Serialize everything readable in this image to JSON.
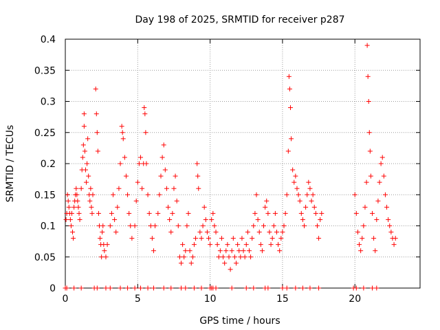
{
  "chart_data": {
    "type": "scatter",
    "title": "Day 198 of 2025, SRMTID for receiver p287",
    "xlabel": "GPS time / hours",
    "ylabel": "SRMTID / TECUs",
    "xlim": [
      0,
      24.5
    ],
    "ylim": [
      0,
      0.4
    ],
    "xticks": [
      0,
      5,
      10,
      15,
      20
    ],
    "xtick_labels": [
      "0",
      "5",
      "10",
      "15",
      "20"
    ],
    "yticks": [
      0,
      0.05,
      0.1,
      0.15,
      0.2,
      0.25,
      0.3,
      0.35,
      0.4
    ],
    "ytick_labels": [
      "0",
      "0.05",
      "0.1",
      "0.15",
      "0.2",
      "0.25",
      "0.3",
      "0.35",
      "0.4"
    ],
    "grid": true,
    "marker": "+",
    "color": "#ff0000",
    "zero_points_x": [
      0.0,
      0.1,
      0.6,
      1.1,
      2.0,
      2.2,
      2.8,
      3.1,
      3.8,
      4.3,
      4.8,
      5.2,
      5.7,
      6.1,
      6.8,
      7.3,
      8.0,
      8.3,
      8.9,
      9.4,
      10.0,
      10.1,
      10.2,
      10.4,
      11.5,
      12.5,
      13.0,
      13.8,
      14.0,
      15.0,
      15.3,
      15.9,
      16.4,
      16.9,
      17.5,
      19.9,
      20.1,
      20.6,
      21.2,
      21.5
    ],
    "series": [
      {
        "name": "SRMTID",
        "points": [
          [
            0.05,
            0.11
          ],
          [
            0.1,
            0.12
          ],
          [
            0.15,
            0.15
          ],
          [
            0.2,
            0.14
          ],
          [
            0.25,
            0.13
          ],
          [
            0.3,
            0.12
          ],
          [
            0.35,
            0.11
          ],
          [
            0.4,
            0.1
          ],
          [
            0.45,
            0.12
          ],
          [
            0.5,
            0.09
          ],
          [
            0.55,
            0.08
          ],
          [
            0.6,
            0.13
          ],
          [
            0.65,
            0.14
          ],
          [
            0.7,
            0.15
          ],
          [
            0.75,
            0.16
          ],
          [
            0.8,
            0.15
          ],
          [
            0.85,
            0.14
          ],
          [
            0.9,
            0.13
          ],
          [
            0.95,
            0.12
          ],
          [
            1.0,
            0.11
          ],
          [
            1.1,
            0.16
          ],
          [
            1.15,
            0.19
          ],
          [
            1.2,
            0.21
          ],
          [
            1.25,
            0.23
          ],
          [
            1.3,
            0.26
          ],
          [
            1.3,
            0.28
          ],
          [
            1.35,
            0.22
          ],
          [
            1.4,
            0.19
          ],
          [
            1.45,
            0.17
          ],
          [
            1.5,
            0.2
          ],
          [
            1.55,
            0.24
          ],
          [
            1.6,
            0.18
          ],
          [
            1.65,
            0.15
          ],
          [
            1.7,
            0.14
          ],
          [
            1.75,
            0.16
          ],
          [
            1.8,
            0.13
          ],
          [
            1.85,
            0.12
          ],
          [
            1.9,
            0.15
          ],
          [
            2.1,
            0.32
          ],
          [
            2.15,
            0.28
          ],
          [
            2.2,
            0.25
          ],
          [
            2.25,
            0.22
          ],
          [
            2.3,
            0.12
          ],
          [
            2.35,
            0.1
          ],
          [
            2.4,
            0.08
          ],
          [
            2.45,
            0.07
          ],
          [
            2.5,
            0.05
          ],
          [
            2.55,
            0.09
          ],
          [
            2.6,
            0.1
          ],
          [
            2.65,
            0.07
          ],
          [
            2.7,
            0.06
          ],
          [
            2.8,
            0.05
          ],
          [
            2.9,
            0.07
          ],
          [
            3.1,
            0.1
          ],
          [
            3.2,
            0.12
          ],
          [
            3.3,
            0.15
          ],
          [
            3.4,
            0.11
          ],
          [
            3.5,
            0.09
          ],
          [
            3.6,
            0.13
          ],
          [
            3.7,
            0.16
          ],
          [
            3.8,
            0.2
          ],
          [
            3.9,
            0.26
          ],
          [
            3.95,
            0.25
          ],
          [
            4.0,
            0.24
          ],
          [
            4.1,
            0.21
          ],
          [
            4.2,
            0.18
          ],
          [
            4.3,
            0.15
          ],
          [
            4.4,
            0.12
          ],
          [
            4.5,
            0.1
          ],
          [
            4.6,
            0.08
          ],
          [
            4.8,
            0.1
          ],
          [
            4.9,
            0.14
          ],
          [
            5.0,
            0.17
          ],
          [
            5.1,
            0.2
          ],
          [
            5.2,
            0.21
          ],
          [
            5.3,
            0.16
          ],
          [
            5.4,
            0.2
          ],
          [
            5.45,
            0.29
          ],
          [
            5.5,
            0.28
          ],
          [
            5.55,
            0.25
          ],
          [
            5.6,
            0.2
          ],
          [
            5.7,
            0.15
          ],
          [
            5.8,
            0.12
          ],
          [
            5.9,
            0.1
          ],
          [
            6.0,
            0.08
          ],
          [
            6.1,
            0.06
          ],
          [
            6.2,
            0.1
          ],
          [
            6.4,
            0.12
          ],
          [
            6.5,
            0.15
          ],
          [
            6.6,
            0.18
          ],
          [
            6.7,
            0.21
          ],
          [
            6.8,
            0.23
          ],
          [
            6.9,
            0.19
          ],
          [
            7.0,
            0.16
          ],
          [
            7.1,
            0.13
          ],
          [
            7.2,
            0.11
          ],
          [
            7.3,
            0.09
          ],
          [
            7.4,
            0.12
          ],
          [
            7.5,
            0.16
          ],
          [
            7.6,
            0.18
          ],
          [
            7.7,
            0.14
          ],
          [
            7.8,
            0.1
          ],
          [
            7.9,
            0.05
          ],
          [
            8.0,
            0.04
          ],
          [
            8.1,
            0.07
          ],
          [
            8.2,
            0.05
          ],
          [
            8.3,
            0.06
          ],
          [
            8.4,
            0.1
          ],
          [
            8.5,
            0.12
          ],
          [
            8.6,
            0.06
          ],
          [
            8.7,
            0.04
          ],
          [
            8.8,
            0.05
          ],
          [
            8.9,
            0.07
          ],
          [
            9.0,
            0.08
          ],
          [
            9.1,
            0.2
          ],
          [
            9.15,
            0.18
          ],
          [
            9.2,
            0.16
          ],
          [
            9.3,
            0.09
          ],
          [
            9.4,
            0.08
          ],
          [
            9.5,
            0.1
          ],
          [
            9.6,
            0.13
          ],
          [
            9.7,
            0.11
          ],
          [
            9.8,
            0.09
          ],
          [
            9.9,
            0.08
          ],
          [
            10.0,
            0.07
          ],
          [
            10.1,
            0.11
          ],
          [
            10.2,
            0.12
          ],
          [
            10.3,
            0.1
          ],
          [
            10.4,
            0.09
          ],
          [
            10.5,
            0.07
          ],
          [
            10.6,
            0.05
          ],
          [
            10.7,
            0.06
          ],
          [
            10.8,
            0.08
          ],
          [
            10.9,
            0.05
          ],
          [
            11.0,
            0.04
          ],
          [
            11.1,
            0.06
          ],
          [
            11.2,
            0.07
          ],
          [
            11.3,
            0.05
          ],
          [
            11.4,
            0.03
          ],
          [
            11.5,
            0.06
          ],
          [
            11.6,
            0.08
          ],
          [
            11.7,
            0.05
          ],
          [
            11.8,
            0.04
          ],
          [
            11.9,
            0.07
          ],
          [
            12.0,
            0.06
          ],
          [
            12.1,
            0.05
          ],
          [
            12.2,
            0.08
          ],
          [
            12.3,
            0.06
          ],
          [
            12.4,
            0.05
          ],
          [
            12.5,
            0.07
          ],
          [
            12.6,
            0.09
          ],
          [
            12.7,
            0.06
          ],
          [
            12.8,
            0.05
          ],
          [
            12.9,
            0.08
          ],
          [
            13.0,
            0.1
          ],
          [
            13.1,
            0.12
          ],
          [
            13.2,
            0.15
          ],
          [
            13.3,
            0.11
          ],
          [
            13.4,
            0.09
          ],
          [
            13.5,
            0.07
          ],
          [
            13.6,
            0.06
          ],
          [
            13.7,
            0.1
          ],
          [
            13.8,
            0.13
          ],
          [
            13.9,
            0.14
          ],
          [
            14.0,
            0.12
          ],
          [
            14.1,
            0.09
          ],
          [
            14.2,
            0.07
          ],
          [
            14.3,
            0.08
          ],
          [
            14.4,
            0.1
          ],
          [
            14.5,
            0.12
          ],
          [
            14.6,
            0.09
          ],
          [
            14.7,
            0.07
          ],
          [
            14.8,
            0.06
          ],
          [
            14.9,
            0.08
          ],
          [
            15.0,
            0.09
          ],
          [
            15.1,
            0.1
          ],
          [
            15.2,
            0.12
          ],
          [
            15.3,
            0.15
          ],
          [
            15.4,
            0.22
          ],
          [
            15.45,
            0.34
          ],
          [
            15.5,
            0.32
          ],
          [
            15.55,
            0.29
          ],
          [
            15.6,
            0.24
          ],
          [
            15.7,
            0.19
          ],
          [
            15.8,
            0.17
          ],
          [
            15.9,
            0.18
          ],
          [
            16.0,
            0.16
          ],
          [
            16.1,
            0.15
          ],
          [
            16.2,
            0.14
          ],
          [
            16.3,
            0.12
          ],
          [
            16.4,
            0.11
          ],
          [
            16.5,
            0.1
          ],
          [
            16.6,
            0.13
          ],
          [
            16.7,
            0.15
          ],
          [
            16.8,
            0.17
          ],
          [
            16.9,
            0.16
          ],
          [
            17.0,
            0.14
          ],
          [
            17.1,
            0.15
          ],
          [
            17.2,
            0.13
          ],
          [
            17.3,
            0.12
          ],
          [
            17.4,
            0.1
          ],
          [
            17.5,
            0.08
          ],
          [
            17.6,
            0.11
          ],
          [
            17.7,
            0.12
          ],
          [
            20.0,
            0.15
          ],
          [
            20.1,
            0.12
          ],
          [
            20.2,
            0.09
          ],
          [
            20.3,
            0.07
          ],
          [
            20.4,
            0.06
          ],
          [
            20.5,
            0.08
          ],
          [
            20.6,
            0.1
          ],
          [
            20.7,
            0.13
          ],
          [
            20.8,
            0.17
          ],
          [
            20.85,
            0.39
          ],
          [
            20.9,
            0.34
          ],
          [
            20.95,
            0.3
          ],
          [
            21.0,
            0.25
          ],
          [
            21.05,
            0.22
          ],
          [
            21.1,
            0.18
          ],
          [
            21.2,
            0.12
          ],
          [
            21.3,
            0.08
          ],
          [
            21.4,
            0.06
          ],
          [
            21.5,
            0.11
          ],
          [
            21.6,
            0.14
          ],
          [
            21.7,
            0.17
          ],
          [
            21.8,
            0.2
          ],
          [
            21.9,
            0.21
          ],
          [
            22.0,
            0.18
          ],
          [
            22.1,
            0.15
          ],
          [
            22.2,
            0.13
          ],
          [
            22.3,
            0.11
          ],
          [
            22.4,
            0.1
          ],
          [
            22.5,
            0.09
          ],
          [
            22.6,
            0.08
          ],
          [
            22.7,
            0.07
          ],
          [
            22.8,
            0.08
          ]
        ]
      }
    ]
  }
}
